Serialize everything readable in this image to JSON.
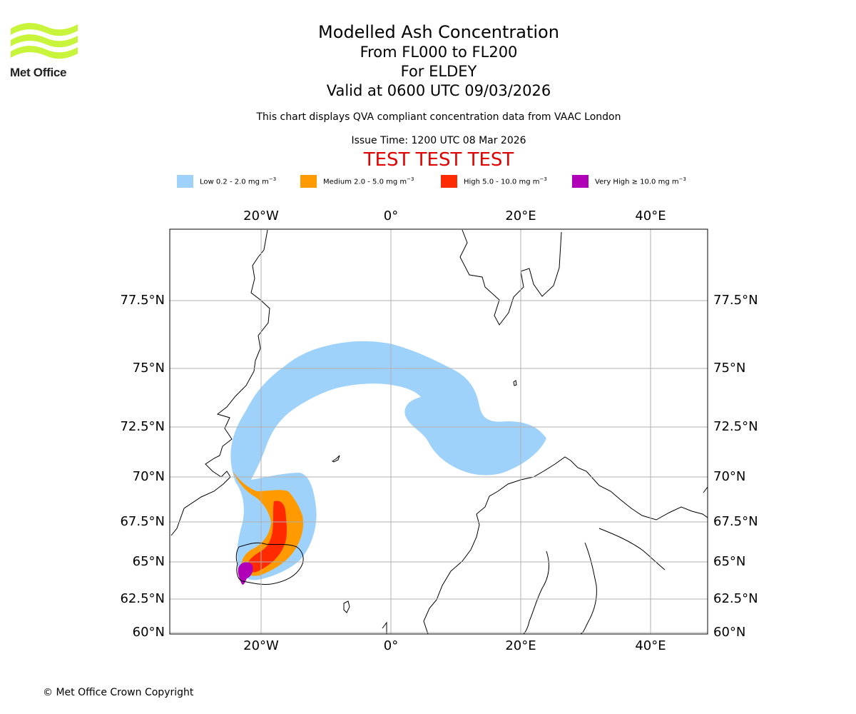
{
  "brand": {
    "logo_text": "Met Office",
    "logo_color": "#c8f53c"
  },
  "header": {
    "title": "Modelled Ash Concentration",
    "levels": "From FL000 to FL200",
    "location": "For ELDEY",
    "valid": "Valid at 0600 UTC 09/03/2026",
    "description": "This chart displays QVA compliant concentration data from VAAC London",
    "issue_time": "Issue Time: 1200 UTC 08 Mar 2026",
    "test_banner": "TEST TEST TEST",
    "test_color": "#e00000"
  },
  "legend": [
    {
      "label": "Low 0.2 - 2.0 mg m",
      "unit_exp": "−3",
      "color": "#9fd2fb"
    },
    {
      "label": "Medium 2.0 - 5.0 mg m",
      "unit_exp": "−3",
      "color": "#ff9a00"
    },
    {
      "label": "High 5.0 - 10.0 mg m",
      "unit_exp": "−3",
      "color": "#ff2a00"
    },
    {
      "label": "Very High  ≥  10.0 mg m",
      "unit_exp": "−3",
      "color": "#b000b8"
    }
  ],
  "map": {
    "lon_labels": [
      "20°W",
      "0°",
      "20°E",
      "40°E"
    ],
    "lon_values": [
      -20,
      0,
      20,
      40
    ],
    "lat_labels": [
      "77.5°N",
      "75°N",
      "72.5°N",
      "70°N",
      "67.5°N",
      "65°N",
      "62.5°N",
      "60°N"
    ],
    "lat_values": [
      77.5,
      75,
      72.5,
      70,
      67.5,
      65,
      62.5,
      60
    ],
    "gridlines": true
  },
  "footer": {
    "copyright": "© Met Office Crown Copyright"
  }
}
